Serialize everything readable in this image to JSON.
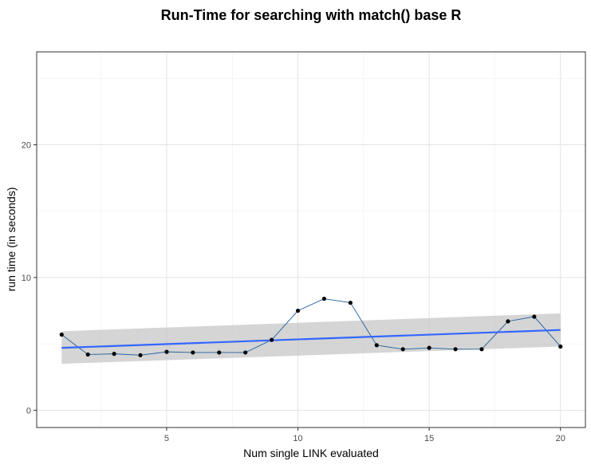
{
  "chart_data": {
    "type": "line",
    "title": "Run-Time for searching with match() base R",
    "xlabel": "Num single LINK evaluated",
    "ylabel": "run time (in seconds)",
    "xlim": [
      0.05,
      20.95
    ],
    "ylim": [
      -1.3,
      27.0
    ],
    "x_ticks": [
      5,
      10,
      15,
      20
    ],
    "x_tick_labels": [
      "5",
      "10",
      "15",
      "20"
    ],
    "y_ticks": [
      0,
      10,
      20
    ],
    "y_tick_labels": [
      "0",
      "10",
      "20"
    ],
    "x_minor_ticks": [
      2.5,
      7.5,
      12.5,
      17.5
    ],
    "y_minor_ticks": [
      5,
      15,
      25
    ],
    "grid": true,
    "series": [
      {
        "style": "points-with-line",
        "point_color": "#000000",
        "line_color": "#1f5f9e",
        "x": [
          1,
          2,
          3,
          4,
          5,
          6,
          7,
          8,
          9,
          10,
          11,
          12,
          13,
          14,
          15,
          16,
          17,
          18,
          19,
          20
        ],
        "y": [
          5.7,
          4.2,
          4.25,
          4.15,
          4.4,
          4.35,
          4.35,
          4.35,
          5.3,
          7.5,
          8.4,
          8.1,
          4.9,
          4.6,
          4.7,
          4.6,
          4.6,
          6.7,
          7.05,
          4.8
        ]
      }
    ],
    "trend": {
      "type": "linear-fit",
      "color": "#3366ff",
      "ribbon_color": "#bfbfbf",
      "x": [
        1,
        20
      ],
      "y": [
        4.7,
        6.05
      ],
      "lower": [
        3.5,
        4.8
      ],
      "upper": [
        5.95,
        7.3
      ]
    }
  }
}
